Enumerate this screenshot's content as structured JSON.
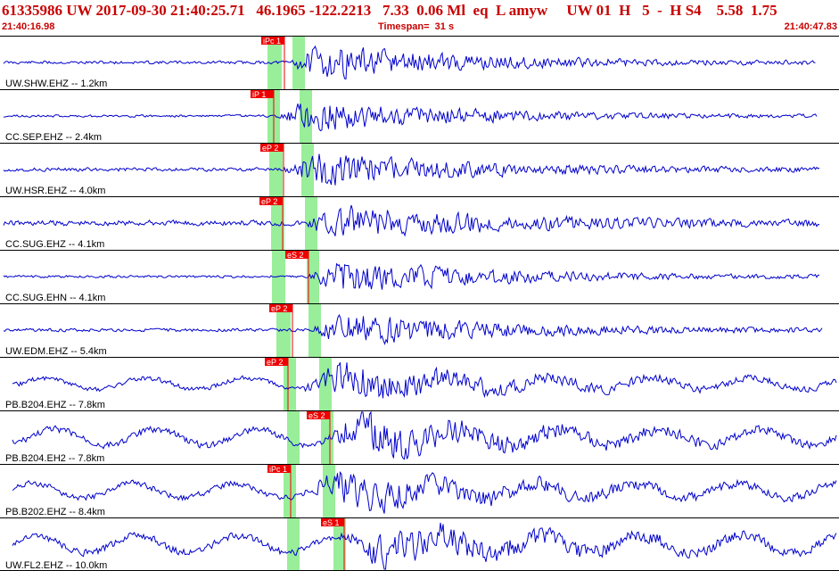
{
  "header": {
    "event_line": "61335986 UW 2017-09-30 21:40:25.71   46.1965 -122.2213   7.33  0.06 Ml  eq  L amyw     UW 01  H   5  -  H S4    5.58  1.75",
    "start_time": "21:40:16.98",
    "timespan": "Timespan=  31 s",
    "end_time": "21:40:47.83"
  },
  "colors": {
    "trace": "#0000cc",
    "pick_fill": "#ee0000",
    "pick_text": "#ffffff",
    "window": "#99ee99",
    "header_text": "#c80000",
    "separator": "#000000"
  },
  "traces": [
    {
      "label": "UW.SHW.EHZ -- 1.2km",
      "pick": "iPc 1",
      "amp": 5,
      "seed": 11
    },
    {
      "label": "CC.SEP.EHZ -- 2.4km",
      "pick": "iP 1",
      "amp": 4,
      "seed": 23
    },
    {
      "label": "UW.HSR.EHZ -- 4.0km",
      "pick": "eP 2",
      "amp": 6,
      "seed": 37
    },
    {
      "label": "CC.SUG.EHZ -- 4.1km",
      "pick": "eP 2",
      "amp": 9,
      "seed": 41
    },
    {
      "label": "CC.SUG.EHN -- 4.1km",
      "pick": "eS 2",
      "amp": 4,
      "seed": 53
    },
    {
      "label": "UW.EDM.EHZ -- 5.4km",
      "pick": "eP 2",
      "amp": 5,
      "seed": 67
    },
    {
      "label": "PB.B204.EHZ -- 7.8km",
      "pick": "eP 2",
      "amp": 8,
      "seed": 71
    },
    {
      "label": "PB.B204.EH2 -- 7.8km",
      "pick": "eS 2",
      "amp": 11,
      "seed": 83
    },
    {
      "label": "PB.B202.EHZ -- 8.4km",
      "pick": "iPc 1",
      "amp": 10,
      "seed": 97
    },
    {
      "label": "UW.FL2.EHZ -- 10.0km",
      "pick": "eS 1",
      "amp": 12,
      "seed": 103
    }
  ]
}
